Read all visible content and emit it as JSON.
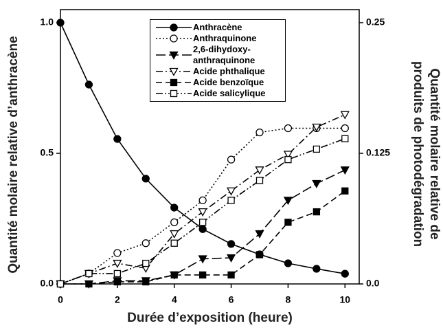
{
  "chart_data": {
    "type": "line",
    "xlabel": "Durée d’exposition (heure)",
    "ylabel": "Quantité molaire relative d’anthracène",
    "y2label": "Quantité molaire relative de produits de photodégradation",
    "x": [
      0,
      1,
      2,
      3,
      4,
      5,
      6,
      7,
      8,
      9,
      10
    ],
    "xlim": [
      0,
      10.5
    ],
    "xticks": [
      0,
      2,
      4,
      6,
      8,
      10
    ],
    "ylim": [
      0,
      1.05
    ],
    "yticks": [
      {
        "value": 0,
        "label": "0.0"
      },
      0.5,
      {
        "value": 1,
        "label": "1.0"
      }
    ],
    "y2lim": [
      0,
      0.2625
    ],
    "y2ticks": [
      {
        "value": 0,
        "label": "0.0"
      },
      0.125,
      0.25
    ],
    "legend": "upper center",
    "series": [
      {
        "name": "Anthracène",
        "color": "#000000",
        "linestyle": "solid",
        "marker": "circle",
        "filled": true,
        "values": [
          1.0,
          0.763,
          0.555,
          0.403,
          0.292,
          0.21,
          0.153,
          0.113,
          0.079,
          0.058,
          0.039
        ]
      },
      {
        "name": "Anthraquinone",
        "color": "#000000",
        "linestyle": "dotted",
        "marker": "circle",
        "filled": false,
        "axis": "y2",
        "values": [
          0,
          0.0099,
          0.0296,
          0.039,
          0.059,
          0.08,
          0.119,
          0.145,
          0.149,
          0.149,
          0.149
        ]
      },
      {
        "name": "2,6-dihydoxy-anthraquinone",
        "color": "#000000",
        "linestyle": "longdash",
        "marker": "triangle-down",
        "filled": true,
        "axis": "y2",
        "values": [
          0,
          0,
          0.003,
          0.003,
          0.0086,
          0.024,
          0.025,
          0.048,
          0.08,
          0.096,
          0.109
        ]
      },
      {
        "name": "Acide phthalique",
        "color": "#000000",
        "linestyle": "dashdot",
        "marker": "triangle-down",
        "filled": false,
        "axis": "y2",
        "values": [
          0,
          0.0099,
          0.0197,
          0.015,
          0.048,
          0.069,
          0.089,
          0.109,
          0.124,
          0.15,
          0.162
        ]
      },
      {
        "name": "Acide benzoïque",
        "color": "#000000",
        "linestyle": "dashed",
        "marker": "square",
        "filled": true,
        "axis": "y2",
        "values": [
          0,
          0,
          0.002,
          0.002,
          0.0086,
          0.0086,
          0.0086,
          0.028,
          0.059,
          0.069,
          0.089
        ]
      },
      {
        "name": "Acide salicylique",
        "color": "#000000",
        "linestyle": "dashdotdot",
        "marker": "square",
        "filled": false,
        "axis": "y2",
        "values": [
          0,
          0.0099,
          0.0099,
          0.0197,
          0.039,
          0.059,
          0.08,
          0.099,
          0.119,
          0.129,
          0.139
        ]
      }
    ]
  }
}
